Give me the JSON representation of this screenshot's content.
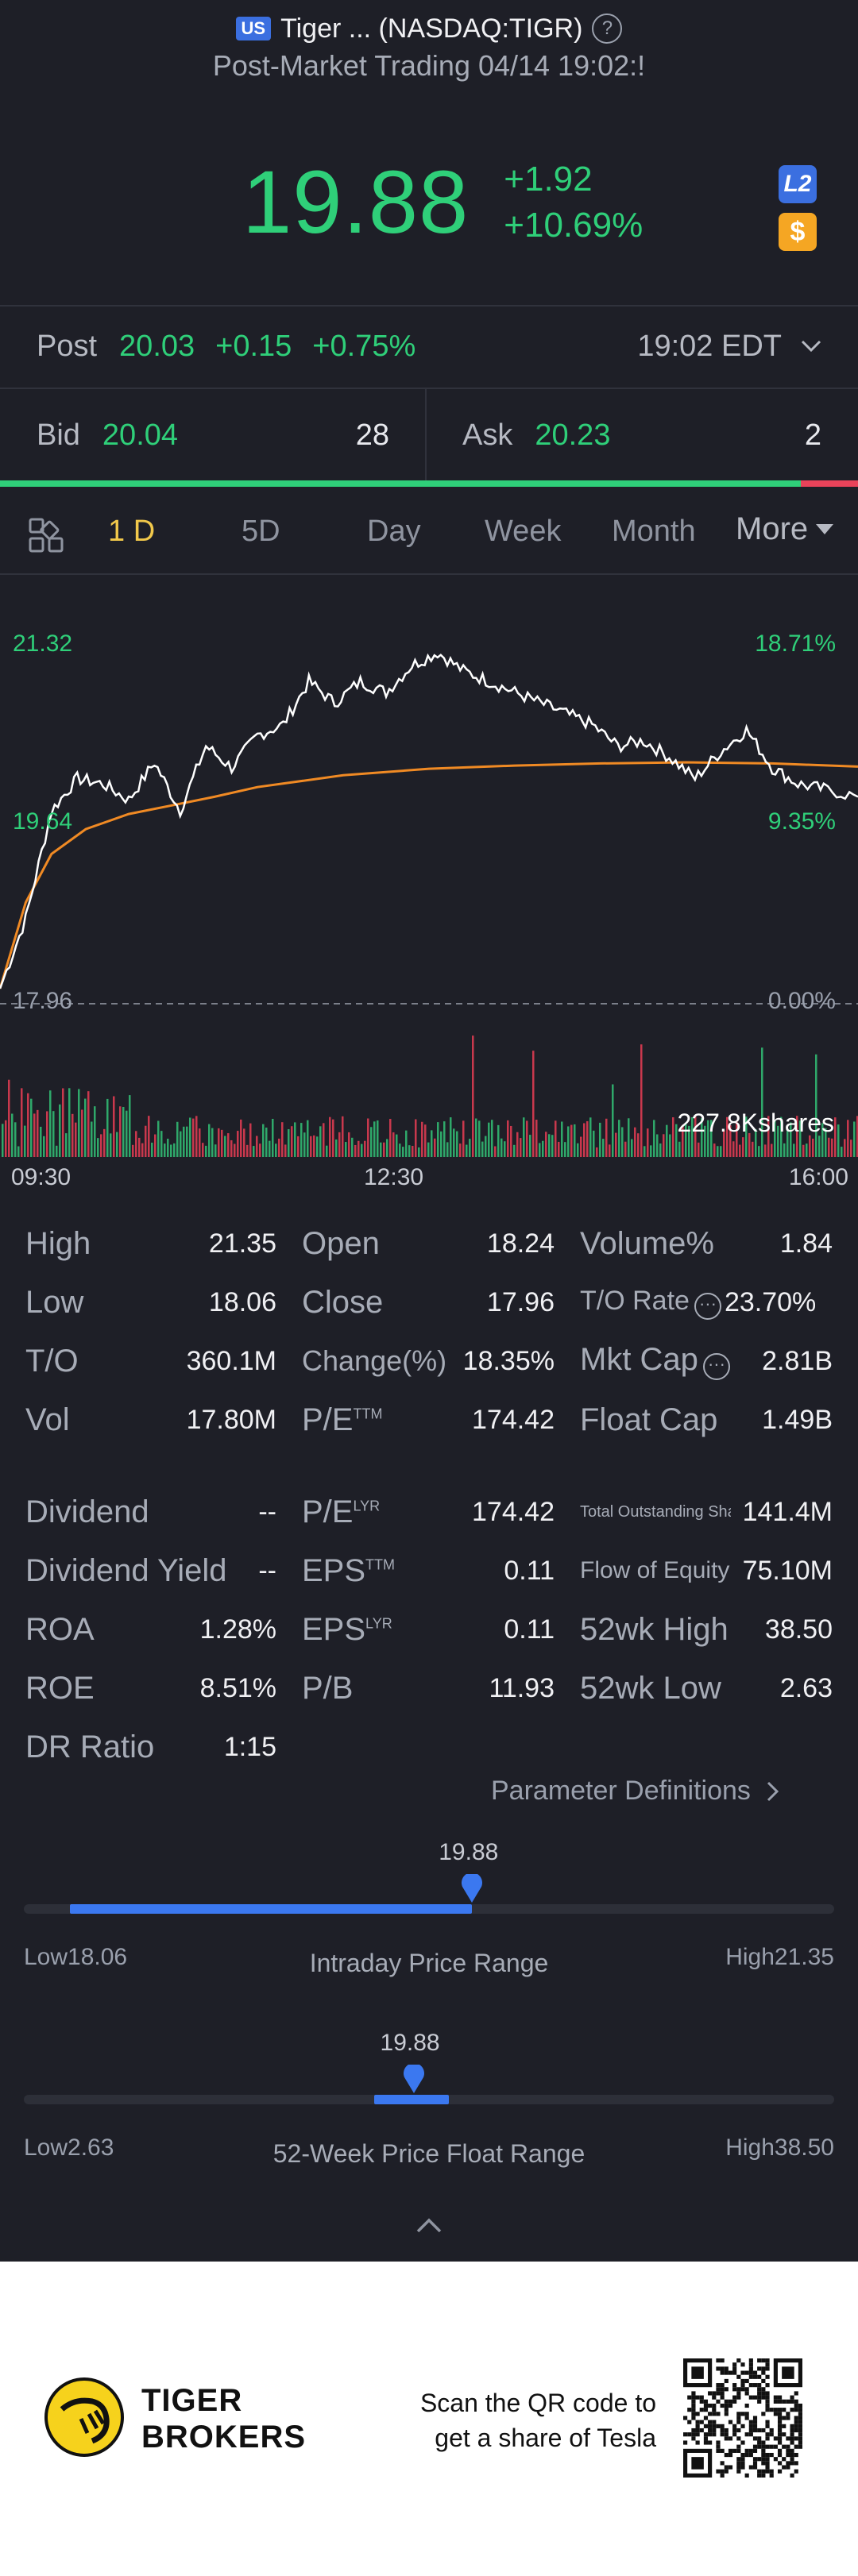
{
  "header": {
    "market_badge": "US",
    "title": "Tiger ... (NASDAQ:TIGR)",
    "subtitle": "Post-Market Trading 04/14 19:02:!"
  },
  "quote": {
    "price": "19.88",
    "change": "+1.92",
    "change_pct": "+10.69%",
    "badge_l2": "L2",
    "badge_currency": "$"
  },
  "post": {
    "label": "Post",
    "price": "20.03",
    "change": "+0.15",
    "change_pct": "+0.75%",
    "time": "19:02 EDT"
  },
  "bid": {
    "label": "Bid",
    "price": "20.04",
    "qty": "28"
  },
  "ask": {
    "label": "Ask",
    "price": "20.23",
    "qty": "2"
  },
  "bid_ask_ratio": 0.933,
  "tabs": {
    "items": [
      "1 D",
      "5D",
      "Day",
      "Week",
      "Month"
    ],
    "more": "More",
    "active": "1 D"
  },
  "chart_data": {
    "type": "line",
    "title": "",
    "price_axis": {
      "top": "21.32",
      "mid": "19.64",
      "base": "17.96"
    },
    "pct_axis": {
      "top": "18.71%",
      "mid": "9.35%",
      "base": "0.00%"
    },
    "ylim": [
      17.96,
      21.32
    ],
    "x_ticks": [
      "09:30",
      "12:30",
      "16:00"
    ],
    "volume_label": "227.8Kshares",
    "series": [
      {
        "name": "",
        "color": "#ffffff",
        "x": [
          0,
          0.03,
          0.06,
          0.09,
          0.12,
          0.15,
          0.18,
          0.21,
          0.24,
          0.27,
          0.3,
          0.33,
          0.36,
          0.39,
          0.42,
          0.45,
          0.48,
          0.51,
          0.54,
          0.57,
          0.6,
          0.63,
          0.66,
          0.69,
          0.72,
          0.75,
          0.78,
          0.81,
          0.84,
          0.87,
          0.9,
          0.93,
          0.96,
          1.0
        ],
        "y": [
          18.1,
          18.75,
          19.75,
          20.05,
          20.0,
          19.85,
          20.2,
          19.75,
          20.35,
          20.15,
          20.45,
          20.55,
          20.95,
          20.75,
          20.95,
          20.85,
          21.1,
          21.22,
          21.05,
          20.95,
          20.85,
          20.75,
          20.65,
          20.55,
          20.35,
          20.4,
          20.25,
          20.05,
          20.3,
          20.5,
          20.15,
          20.0,
          19.95,
          19.88
        ]
      },
      {
        "name": "",
        "color": "#f08a24",
        "x": [
          0,
          0.03,
          0.06,
          0.1,
          0.15,
          0.2,
          0.25,
          0.3,
          0.4,
          0.5,
          0.6,
          0.7,
          0.8,
          0.9,
          1.0
        ],
        "y": [
          18.1,
          18.9,
          19.35,
          19.58,
          19.72,
          19.8,
          19.88,
          19.97,
          20.08,
          20.14,
          20.17,
          20.19,
          20.2,
          20.19,
          20.16
        ]
      }
    ]
  },
  "stats": {
    "col1": [
      {
        "key": "High",
        "value": "21.35"
      },
      {
        "key": "Low",
        "value": "18.06"
      },
      {
        "key": "T/O",
        "value": "360.1M"
      },
      {
        "key": "Vol",
        "value": "17.80M"
      },
      {
        "key": "Dividend",
        "value": "--"
      },
      {
        "key": "Dividend Yield",
        "value": "--"
      },
      {
        "key": "ROA",
        "value": "1.28%"
      },
      {
        "key": "ROE",
        "value": "8.51%"
      },
      {
        "key": "DR Ratio",
        "value": "1:15"
      }
    ],
    "col2": [
      {
        "key": "Open",
        "value": "18.24"
      },
      {
        "key": "Close",
        "value": "17.96"
      },
      {
        "key": "Change(%)",
        "value": "18.35%"
      },
      {
        "key": "P/E",
        "sup": "TTM",
        "value": "174.42"
      },
      {
        "key": "P/E",
        "sup": "LYR",
        "value": "174.42"
      },
      {
        "key": "EPS",
        "sup": "TTM",
        "value": "0.11"
      },
      {
        "key": "EPS",
        "sup": "LYR",
        "value": "0.11"
      },
      {
        "key": "P/B",
        "value": "11.93"
      }
    ],
    "col3": [
      {
        "key": "Volume%",
        "value": "1.84"
      },
      {
        "key": "T/O Rate",
        "value": "23.70%"
      },
      {
        "key": "Mkt Cap",
        "value": "2.81B"
      },
      {
        "key": "Float Cap",
        "value": "1.49B"
      },
      {
        "key": "Total Outstanding Sha",
        "value": "141.4M"
      },
      {
        "key": "Flow of Equity",
        "value": "75.10M"
      },
      {
        "key": "52wk High",
        "value": "38.50"
      },
      {
        "key": "52wk Low",
        "value": "2.63"
      }
    ]
  },
  "param_definitions": "Parameter Definitions",
  "intraday_range": {
    "title": "Intraday Price Range",
    "current": "19.88",
    "low_label": "Low18.06",
    "high_label": "High21.35",
    "low": 18.06,
    "high": 21.35,
    "value": 19.88
  },
  "week52_range": {
    "title": "52-Week Price Float Range",
    "current": "19.88",
    "low_label": "Low2.63",
    "high_label": "High38.50",
    "low": 2.63,
    "high": 38.5,
    "value": 19.88
  },
  "footer": {
    "brand_line1": "TIGER",
    "brand_line2": "BROKERS",
    "promo_line1": "Scan the QR code to",
    "promo_line2": "get a share of Tesla"
  },
  "colors": {
    "up": "#2fcf79",
    "down": "#e9435a",
    "accent": "#3b78f0",
    "active_tab": "#f1c84b",
    "avg_line": "#f08a24"
  }
}
